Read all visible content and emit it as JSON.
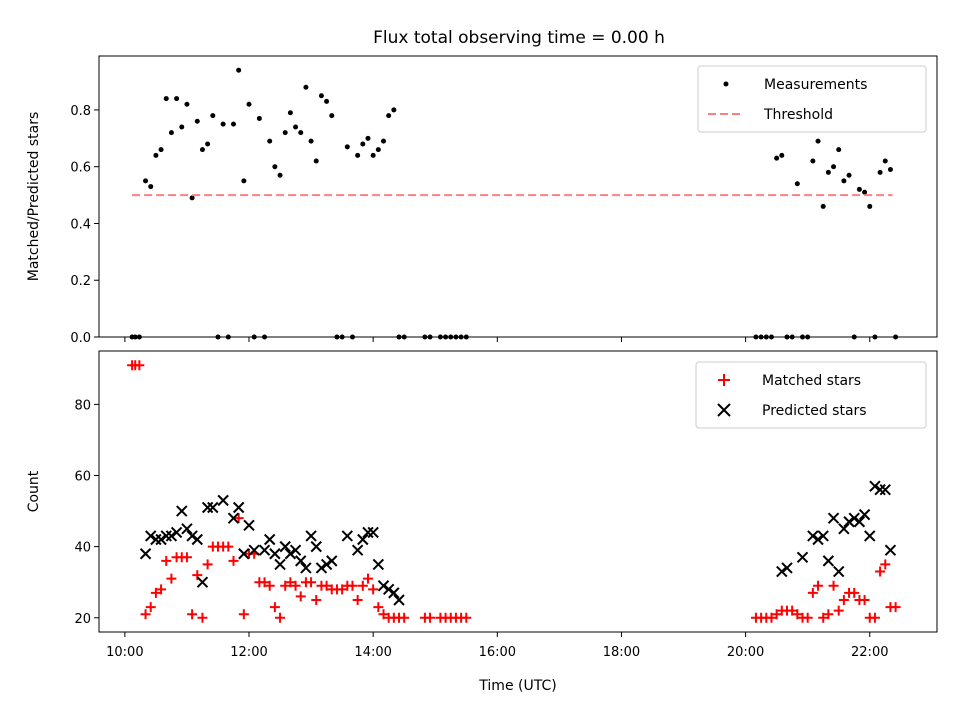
{
  "chart_data": [
    {
      "type": "scatter",
      "title": "Flux total observing time = 0.00 h",
      "xlabel": "",
      "ylabel": "Matched/Predicted stars",
      "xlim": [
        "09:35",
        "23:05"
      ],
      "ylim": [
        0,
        0.99
      ],
      "yticks": [
        0.0,
        0.2,
        0.4,
        0.6,
        0.8
      ],
      "ytick_labels": [
        "0.0",
        "0.2",
        "0.4",
        "0.6",
        "0.8"
      ],
      "xticks": [
        "10:00",
        "12:00",
        "14:00",
        "16:00",
        "18:00",
        "20:00",
        "22:00"
      ],
      "show_xtick_labels": false,
      "grid": false,
      "legend": "top-right",
      "series": [
        {
          "name": "Measurements",
          "kind": "scatter",
          "marker": "dot",
          "color": "#000000",
          "points": [
            [
              "10:07",
              0
            ],
            [
              "10:10",
              0
            ],
            [
              "10:14",
              0
            ],
            [
              "10:20",
              0.55
            ],
            [
              "10:25",
              0.53
            ],
            [
              "10:30",
              0.64
            ],
            [
              "10:35",
              0.66
            ],
            [
              "10:40",
              0.84
            ],
            [
              "10:45",
              0.72
            ],
            [
              "10:50",
              0.84
            ],
            [
              "10:55",
              0.74
            ],
            [
              "11:00",
              0.82
            ],
            [
              "11:05",
              0.49
            ],
            [
              "11:10",
              0.76
            ],
            [
              "11:15",
              0.66
            ],
            [
              "11:20",
              0.68
            ],
            [
              "11:25",
              0.78
            ],
            [
              "11:30",
              0
            ],
            [
              "11:35",
              0.75
            ],
            [
              "11:40",
              0
            ],
            [
              "11:45",
              0.75
            ],
            [
              "11:50",
              0.94
            ],
            [
              "11:55",
              0.55
            ],
            [
              "12:00",
              0.82
            ],
            [
              "12:05",
              0
            ],
            [
              "12:10",
              0.77
            ],
            [
              "12:15",
              0
            ],
            [
              "12:20",
              0.69
            ],
            [
              "12:25",
              0.6
            ],
            [
              "12:30",
              0.57
            ],
            [
              "12:35",
              0.72
            ],
            [
              "12:40",
              0.79
            ],
            [
              "12:45",
              0.74
            ],
            [
              "12:50",
              0.72
            ],
            [
              "12:55",
              0.88
            ],
            [
              "13:00",
              0.69
            ],
            [
              "13:05",
              0.62
            ],
            [
              "13:10",
              0.85
            ],
            [
              "13:15",
              0.83
            ],
            [
              "13:20",
              0.78
            ],
            [
              "13:25",
              0
            ],
            [
              "13:30",
              0
            ],
            [
              "13:35",
              0.67
            ],
            [
              "13:40",
              0
            ],
            [
              "13:45",
              0.64
            ],
            [
              "13:50",
              0.68
            ],
            [
              "13:55",
              0.7
            ],
            [
              "14:00",
              0.64
            ],
            [
              "14:05",
              0.66
            ],
            [
              "14:10",
              0.69
            ],
            [
              "14:15",
              0.78
            ],
            [
              "14:20",
              0.8
            ],
            [
              "14:25",
              0
            ],
            [
              "14:30",
              0
            ],
            [
              "14:50",
              0
            ],
            [
              "14:55",
              0
            ],
            [
              "15:05",
              0
            ],
            [
              "15:10",
              0
            ],
            [
              "15:15",
              0
            ],
            [
              "15:20",
              0
            ],
            [
              "15:25",
              0
            ],
            [
              "15:30",
              0
            ],
            [
              "20:10",
              0
            ],
            [
              "20:15",
              0
            ],
            [
              "20:20",
              0
            ],
            [
              "20:25",
              0
            ],
            [
              "20:30",
              0.63
            ],
            [
              "20:35",
              0.64
            ],
            [
              "20:40",
              0
            ],
            [
              "20:45",
              0
            ],
            [
              "20:50",
              0.54
            ],
            [
              "20:55",
              0
            ],
            [
              "21:00",
              0
            ],
            [
              "21:05",
              0.62
            ],
            [
              "21:10",
              0.69
            ],
            [
              "21:15",
              0.46
            ],
            [
              "21:20",
              0.58
            ],
            [
              "21:25",
              0.6
            ],
            [
              "21:30",
              0.66
            ],
            [
              "21:35",
              0.55
            ],
            [
              "21:40",
              0.57
            ],
            [
              "21:45",
              0
            ],
            [
              "21:50",
              0.52
            ],
            [
              "21:55",
              0.51
            ],
            [
              "22:00",
              0.46
            ],
            [
              "22:05",
              0
            ],
            [
              "22:10",
              0.58
            ],
            [
              "22:15",
              0.62
            ],
            [
              "22:20",
              0.59
            ],
            [
              "22:25",
              0
            ]
          ]
        },
        {
          "name": "Threshold",
          "kind": "dashed-line",
          "color": "#ff7f7f",
          "points": [
            [
              "10:07",
              0.5
            ],
            [
              "22:22",
              0.5
            ]
          ]
        }
      ]
    },
    {
      "type": "scatter",
      "title": "",
      "xlabel": "Time (UTC)",
      "ylabel": "Count",
      "xlim": [
        "09:35",
        "23:05"
      ],
      "ylim": [
        16,
        95
      ],
      "yticks": [
        20,
        40,
        60,
        80
      ],
      "ytick_labels": [
        "20",
        "40",
        "60",
        "80"
      ],
      "xticks": [
        "10:00",
        "12:00",
        "14:00",
        "16:00",
        "18:00",
        "20:00",
        "22:00"
      ],
      "xtick_labels": [
        "10:00",
        "12:00",
        "14:00",
        "16:00",
        "18:00",
        "20:00",
        "22:00"
      ],
      "show_xtick_labels": true,
      "grid": false,
      "legend": "top-right",
      "series": [
        {
          "name": "Matched stars",
          "kind": "scatter",
          "marker": "plus",
          "color": "#ff0000",
          "points": [
            [
              "10:07",
              91
            ],
            [
              "10:10",
              91
            ],
            [
              "10:14",
              91
            ],
            [
              "10:20",
              21
            ],
            [
              "10:25",
              23
            ],
            [
              "10:30",
              27
            ],
            [
              "10:35",
              28
            ],
            [
              "10:40",
              36
            ],
            [
              "10:45",
              31
            ],
            [
              "10:50",
              37
            ],
            [
              "10:55",
              37
            ],
            [
              "11:00",
              37
            ],
            [
              "11:05",
              21
            ],
            [
              "11:10",
              32
            ],
            [
              "11:15",
              20
            ],
            [
              "11:20",
              35
            ],
            [
              "11:25",
              40
            ],
            [
              "11:30",
              40
            ],
            [
              "11:35",
              40
            ],
            [
              "11:40",
              40
            ],
            [
              "11:45",
              36
            ],
            [
              "11:50",
              48
            ],
            [
              "11:55",
              21
            ],
            [
              "12:00",
              38
            ],
            [
              "12:05",
              38
            ],
            [
              "12:10",
              30
            ],
            [
              "12:15",
              30
            ],
            [
              "12:20",
              29
            ],
            [
              "12:25",
              23
            ],
            [
              "12:30",
              20
            ],
            [
              "12:35",
              29
            ],
            [
              "12:40",
              30
            ],
            [
              "12:45",
              29
            ],
            [
              "12:50",
              26
            ],
            [
              "12:55",
              30
            ],
            [
              "13:00",
              30
            ],
            [
              "13:05",
              25
            ],
            [
              "13:10",
              29
            ],
            [
              "13:15",
              29
            ],
            [
              "13:20",
              28
            ],
            [
              "13:25",
              28
            ],
            [
              "13:30",
              28
            ],
            [
              "13:35",
              29
            ],
            [
              "13:40",
              29
            ],
            [
              "13:45",
              25
            ],
            [
              "13:50",
              29
            ],
            [
              "13:55",
              31
            ],
            [
              "14:00",
              28
            ],
            [
              "14:05",
              23
            ],
            [
              "14:10",
              21
            ],
            [
              "14:15",
              20
            ],
            [
              "14:20",
              20
            ],
            [
              "14:25",
              20
            ],
            [
              "14:30",
              20
            ],
            [
              "14:50",
              20
            ],
            [
              "14:55",
              20
            ],
            [
              "15:05",
              20
            ],
            [
              "15:10",
              20
            ],
            [
              "15:15",
              20
            ],
            [
              "15:20",
              20
            ],
            [
              "15:25",
              20
            ],
            [
              "15:30",
              20
            ],
            [
              "20:10",
              20
            ],
            [
              "20:15",
              20
            ],
            [
              "20:20",
              20
            ],
            [
              "20:25",
              20
            ],
            [
              "20:30",
              21
            ],
            [
              "20:35",
              22
            ],
            [
              "20:40",
              22
            ],
            [
              "20:45",
              22
            ],
            [
              "20:50",
              21
            ],
            [
              "20:55",
              20
            ],
            [
              "21:00",
              20
            ],
            [
              "21:05",
              27
            ],
            [
              "21:10",
              29
            ],
            [
              "21:15",
              20
            ],
            [
              "21:20",
              21
            ],
            [
              "21:25",
              29
            ],
            [
              "21:30",
              22
            ],
            [
              "21:35",
              25
            ],
            [
              "21:40",
              27
            ],
            [
              "21:45",
              27
            ],
            [
              "21:50",
              25
            ],
            [
              "21:55",
              25
            ],
            [
              "22:00",
              20
            ],
            [
              "22:05",
              20
            ],
            [
              "22:10",
              33
            ],
            [
              "22:15",
              35
            ],
            [
              "22:20",
              23
            ],
            [
              "22:25",
              23
            ]
          ]
        },
        {
          "name": "Predicted stars",
          "kind": "scatter",
          "marker": "x",
          "color": "#000000",
          "points": [
            [
              "10:20",
              38
            ],
            [
              "10:25",
              43
            ],
            [
              "10:30",
              42
            ],
            [
              "10:35",
              42
            ],
            [
              "10:40",
              43
            ],
            [
              "10:45",
              43
            ],
            [
              "10:50",
              44
            ],
            [
              "10:55",
              50
            ],
            [
              "11:00",
              45
            ],
            [
              "11:05",
              43
            ],
            [
              "11:10",
              42
            ],
            [
              "11:15",
              30
            ],
            [
              "11:20",
              51
            ],
            [
              "11:25",
              51
            ],
            [
              "11:35",
              53
            ],
            [
              "11:45",
              48
            ],
            [
              "11:50",
              51
            ],
            [
              "11:55",
              38
            ],
            [
              "12:00",
              46
            ],
            [
              "12:05",
              39
            ],
            [
              "12:15",
              39
            ],
            [
              "12:20",
              42
            ],
            [
              "12:25",
              38
            ],
            [
              "12:30",
              35
            ],
            [
              "12:35",
              40
            ],
            [
              "12:40",
              38
            ],
            [
              "12:45",
              39
            ],
            [
              "12:50",
              36
            ],
            [
              "12:55",
              34
            ],
            [
              "13:00",
              43
            ],
            [
              "13:05",
              40
            ],
            [
              "13:10",
              34
            ],
            [
              "13:15",
              35
            ],
            [
              "13:20",
              36
            ],
            [
              "13:35",
              43
            ],
            [
              "13:45",
              39
            ],
            [
              "13:50",
              42
            ],
            [
              "13:55",
              44
            ],
            [
              "14:00",
              44
            ],
            [
              "14:05",
              35
            ],
            [
              "14:10",
              29
            ],
            [
              "14:15",
              28
            ],
            [
              "14:20",
              27
            ],
            [
              "14:25",
              25
            ],
            [
              "20:35",
              33
            ],
            [
              "20:40",
              34
            ],
            [
              "20:55",
              37
            ],
            [
              "21:05",
              43
            ],
            [
              "21:10",
              42
            ],
            [
              "21:15",
              43
            ],
            [
              "21:20",
              36
            ],
            [
              "21:25",
              48
            ],
            [
              "21:30",
              33
            ],
            [
              "21:35",
              45
            ],
            [
              "21:40",
              47
            ],
            [
              "21:45",
              48
            ],
            [
              "21:50",
              47
            ],
            [
              "21:55",
              49
            ],
            [
              "22:00",
              43
            ],
            [
              "22:05",
              57
            ],
            [
              "22:10",
              56
            ],
            [
              "22:15",
              56
            ],
            [
              "22:20",
              39
            ]
          ]
        }
      ]
    }
  ]
}
